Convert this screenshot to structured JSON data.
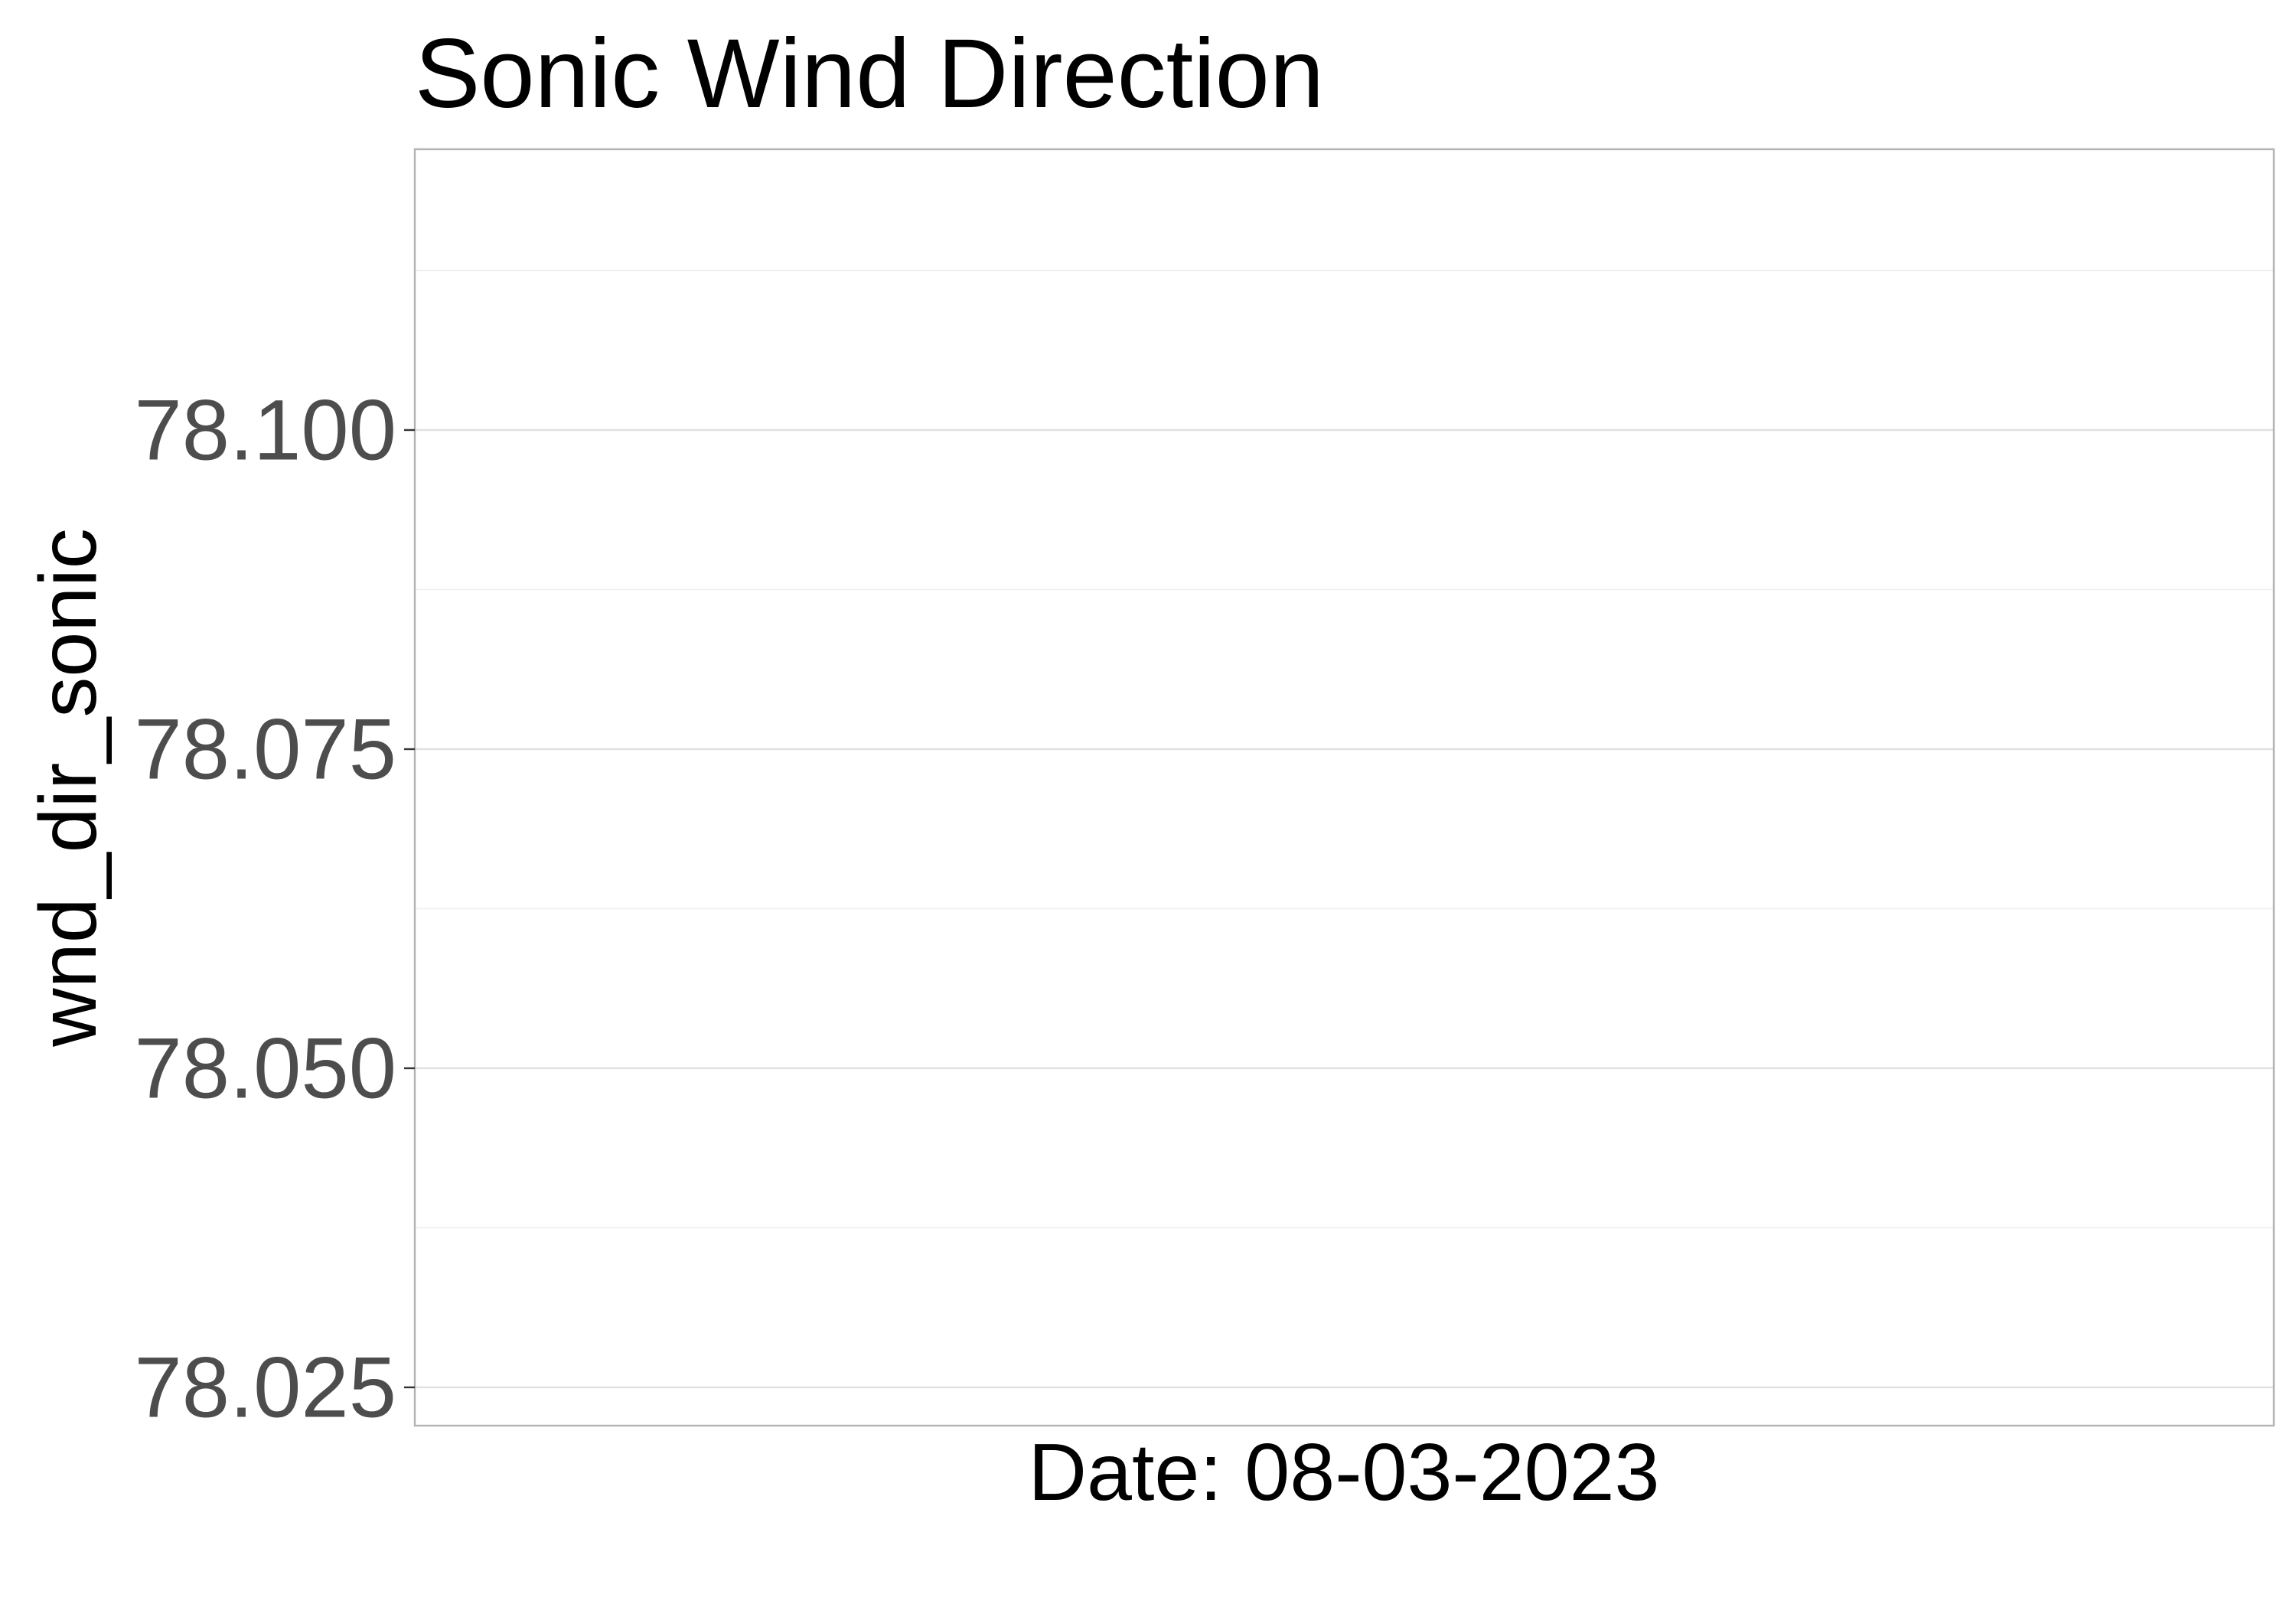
{
  "chart_data": {
    "type": "line",
    "title": "Sonic Wind Direction",
    "xlabel": "Date: 08-03-2023",
    "ylabel": "wnd_dir_sonic",
    "ylim": [
      78.022,
      78.122
    ],
    "y_ticks": [
      {
        "value": 78.025,
        "label": "78.025"
      },
      {
        "value": 78.05,
        "label": "78.050"
      },
      {
        "value": 78.075,
        "label": "78.075"
      },
      {
        "value": 78.1,
        "label": "78.100"
      }
    ],
    "y_minor_ticks": [
      78.0375,
      78.0625,
      78.0875,
      78.1125
    ],
    "x_ticks": [],
    "series": [],
    "grid": true,
    "legend": "none",
    "colors": {
      "background": "#ffffff",
      "grid_major": "#e0e0e0",
      "grid_minor": "#efefef",
      "panel_border": "#b3b3b3",
      "tick_label": "#4d4d4d",
      "title": "#000000"
    }
  }
}
